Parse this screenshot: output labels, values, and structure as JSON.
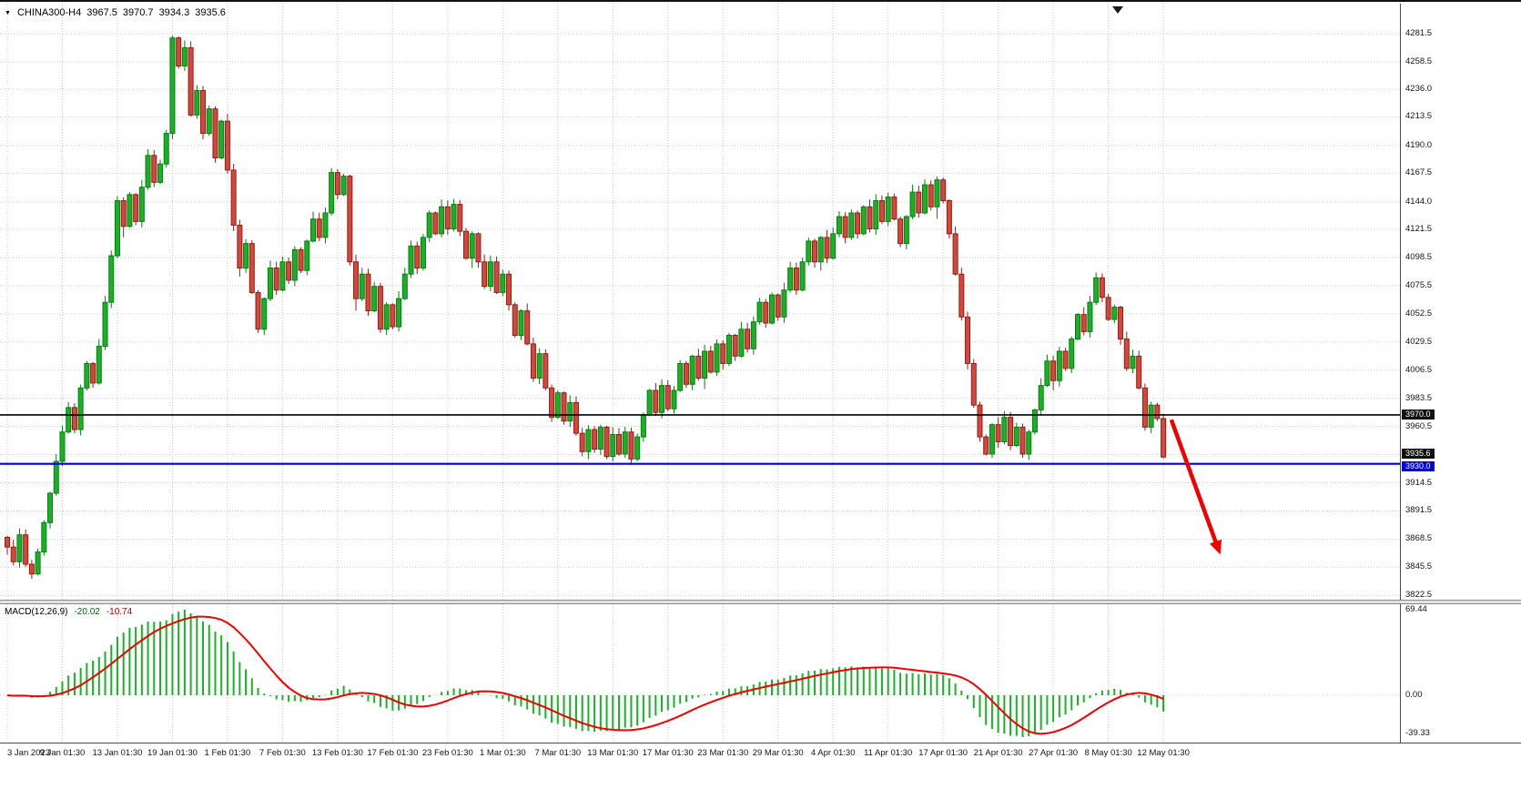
{
  "header": {
    "symbol": "CHINA300-H4",
    "open": "3967.5",
    "high": "3970.7",
    "low": "3934.3",
    "close": "3935.6"
  },
  "macd_panel": {
    "label": "MACD(12,26,9)",
    "value_main": "-20.02",
    "value_signal": "-10.74",
    "scale_labels": [
      "69.44",
      "0.00",
      "-39.33"
    ]
  },
  "chart_data": {
    "type": "candlestick",
    "symbol": "CHINA300",
    "timeframe": "H4",
    "ylim": {
      "min": 3819,
      "max": 4306
    },
    "y_ticks": [
      "4281.5",
      "4258.5",
      "4236.0",
      "4213.5",
      "4190.0",
      "4167.5",
      "4144.0",
      "4121.5",
      "4098.5",
      "4075.5",
      "4052.5",
      "4029.5",
      "4006.5",
      "3983.5",
      "3960.5",
      "3937.5",
      "3914.5",
      "3891.5",
      "3868.5",
      "3845.5",
      "3822.5"
    ],
    "x_labels": [
      "3 Jan 2023",
      "9 Jan 01:30",
      "13 Jan 01:30",
      "19 Jan 01:30",
      "1 Feb 01:30",
      "7 Feb 01:30",
      "13 Feb 01:30",
      "17 Feb 01:30",
      "23 Feb 01:30",
      "1 Mar 01:30",
      "7 Mar 01:30",
      "13 Mar 01:30",
      "17 Mar 01:30",
      "23 Mar 01:30",
      "29 Mar 01:30",
      "4 Apr 01:30",
      "11 Apr 01:30",
      "17 Apr 01:30",
      "21 Apr 01:30",
      "27 Apr 01:30",
      "8 May 01:30",
      "12 May 01:30"
    ],
    "bars_per_label": 9,
    "open_first": 3870,
    "closes": [
      3862,
      3850,
      3872,
      3848,
      3840,
      3858,
      3882,
      3906,
      3932,
      3956,
      3976,
      3958,
      3992,
      4012,
      3996,
      4026,
      4062,
      4100,
      4145,
      4124,
      4150,
      4128,
      4156,
      4182,
      4160,
      4175,
      4200,
      4278,
      4255,
      4270,
      4215,
      4235,
      4200,
      4220,
      4180,
      4210,
      4170,
      4125,
      4090,
      4110,
      4070,
      4040,
      4065,
      4090,
      4072,
      4095,
      4080,
      4105,
      4088,
      4112,
      4130,
      4115,
      4135,
      4168,
      4150,
      4165,
      4095,
      4065,
      4085,
      4055,
      4075,
      4040,
      4060,
      4042,
      4065,
      4085,
      4108,
      4090,
      4115,
      4135,
      4118,
      4140,
      4122,
      4142,
      4120,
      4098,
      4118,
      4095,
      4075,
      4095,
      4070,
      4085,
      4060,
      4035,
      4055,
      4028,
      4000,
      4020,
      3992,
      3968,
      3988,
      3965,
      3980,
      3955,
      3940,
      3958,
      3942,
      3960,
      3936,
      3954,
      3938,
      3956,
      3934,
      3952,
      3970,
      3990,
      3972,
      3994,
      3975,
      3990,
      4012,
      3995,
      4018,
      4000,
      4022,
      4005,
      4028,
      4012,
      4035,
      4018,
      4040,
      4024,
      4046,
      4062,
      4045,
      4068,
      4050,
      4072,
      4090,
      4072,
      4095,
      4112,
      4095,
      4115,
      4098,
      4118,
      4132,
      4115,
      4135,
      4118,
      4140,
      4122,
      4145,
      4128,
      4148,
      4130,
      4110,
      4132,
      4152,
      4135,
      4158,
      4140,
      4162,
      4145,
      4118,
      4085,
      4050,
      4012,
      3978,
      3952,
      3938,
      3962,
      3948,
      3968,
      3945,
      3960,
      3938,
      3956,
      3974,
      3994,
      4014,
      3998,
      4022,
      4008,
      4032,
      4052,
      4038,
      4062,
      4082,
      4066,
      4048,
      4058,
      4032,
      4008,
      4018,
      3992,
      3960,
      3978,
      3967,
      3935.6
    ],
    "current_bar": {
      "open": 3967.5,
      "high": 3970.7,
      "low": 3934.3,
      "close": 3935.6
    },
    "hlines": [
      {
        "price": 3970.0,
        "label": "3970.0",
        "color": "#000000",
        "width": 1.6
      },
      {
        "price": 3930.0,
        "label": "3930.0",
        "color": "#0000dd",
        "width": 2.2
      }
    ],
    "price_badges": [
      {
        "text": "3970.0",
        "price": 3970.0,
        "bg": "#101010",
        "dy": -6
      },
      {
        "text": "3935.6",
        "price": 3935.6,
        "bg": "#101010",
        "dy": -9
      },
      {
        "text": "3930.0",
        "price": 3930.0,
        "bg": "#0000dd",
        "dy": -3
      }
    ],
    "arrow": {
      "from_bar": 190.3,
      "from_price": 3966,
      "to_bar": 198.3,
      "to_price": 3856,
      "color": "#f20000"
    },
    "macd": {
      "fast": 12,
      "slow": 26,
      "signal": 9,
      "current_main": -20.02,
      "current_signal": -10.74,
      "histogram_color": "#19b226",
      "signal_color": "#f20000",
      "axis": {
        "max": 69.44,
        "zero": 0.0,
        "min": -39.33
      }
    },
    "colors": {
      "up": "#19b226",
      "up_border": "#077d12",
      "down": "#d8453c",
      "down_border": "#8f1f16",
      "grid": "#c9c9c9",
      "background": "#ffffff",
      "axis_text": "#141414"
    }
  }
}
